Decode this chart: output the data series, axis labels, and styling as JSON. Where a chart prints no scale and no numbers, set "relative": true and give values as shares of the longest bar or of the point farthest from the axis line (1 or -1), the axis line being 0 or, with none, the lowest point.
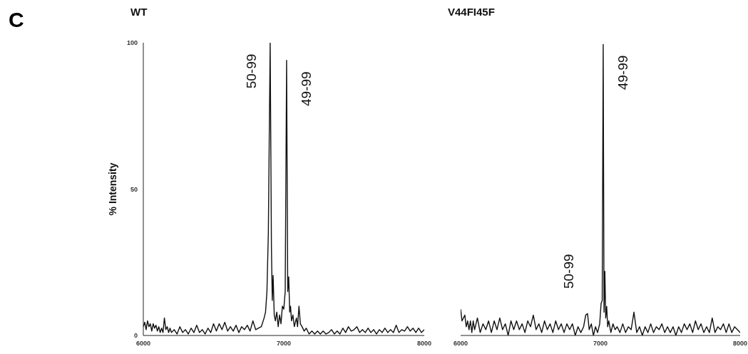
{
  "chart_data": [
    {
      "type": "line",
      "title": "WT",
      "ylabel": "% Intensity",
      "xlim": [
        6000,
        8000
      ],
      "xticks": [
        6000,
        7000,
        8000
      ],
      "ylim": [
        0,
        100
      ],
      "yticks": [
        0,
        50,
        100
      ],
      "marker": "none",
      "color": "#111111",
      "annotations": [
        "C",
        {
          "text": "50-99",
          "x": 6903,
          "y": 100
        },
        {
          "text": "49-99",
          "x": 7020,
          "y": 94
        }
      ],
      "x": [
        6000,
        6010,
        6020,
        6030,
        6040,
        6050,
        6060,
        6070,
        6080,
        6090,
        6100,
        6110,
        6120,
        6130,
        6140,
        6150,
        6160,
        6170,
        6180,
        6190,
        6200,
        6220,
        6240,
        6260,
        6280,
        6300,
        6320,
        6340,
        6360,
        6380,
        6400,
        6420,
        6440,
        6460,
        6480,
        6500,
        6520,
        6540,
        6560,
        6580,
        6600,
        6620,
        6640,
        6660,
        6680,
        6700,
        6720,
        6740,
        6760,
        6780,
        6800,
        6820,
        6840,
        6860,
        6870,
        6880,
        6890,
        6903,
        6912,
        6918,
        6924,
        6932,
        6940,
        6950,
        6960,
        6970,
        6980,
        6990,
        7000,
        7010,
        7020,
        7028,
        7035,
        7042,
        7048,
        7055,
        7065,
        7075,
        7090,
        7098,
        7108,
        7118,
        7130,
        7145,
        7160,
        7180,
        7200,
        7220,
        7240,
        7260,
        7280,
        7300,
        7320,
        7340,
        7360,
        7380,
        7400,
        7420,
        7440,
        7460,
        7480,
        7500,
        7520,
        7540,
        7560,
        7580,
        7600,
        7620,
        7640,
        7660,
        7680,
        7700,
        7720,
        7740,
        7760,
        7780,
        7800,
        7820,
        7840,
        7860,
        7880,
        7900,
        7920,
        7940,
        7960,
        7980,
        8000
      ],
      "values": [
        3,
        4.5,
        2,
        5,
        3,
        4,
        1.5,
        4,
        2.5,
        3.5,
        1.5,
        3,
        1,
        2.5,
        1,
        6,
        2,
        3,
        1,
        2.5,
        1,
        2,
        0.5,
        3,
        1,
        2,
        0.5,
        2.5,
        1,
        3.5,
        1,
        2,
        0.5,
        2.5,
        1,
        4,
        1.5,
        4,
        2,
        4.5,
        1.5,
        3,
        1.5,
        3.5,
        1,
        3,
        2,
        3.5,
        1.5,
        5,
        2,
        2.5,
        3,
        6,
        8,
        15,
        35,
        100,
        30,
        12,
        20.5,
        7,
        5,
        8,
        3,
        7,
        4,
        10,
        9,
        15,
        94,
        15,
        20,
        8,
        10,
        5,
        7,
        3,
        6,
        3,
        10,
        4,
        3,
        1.5,
        2.5,
        0.5,
        1.5,
        0.5,
        1.5,
        0.5,
        1.5,
        0.5,
        1,
        2,
        0.5,
        1.5,
        0.5,
        2.5,
        1,
        3,
        1.5,
        2,
        3,
        1,
        2,
        1,
        2.5,
        1,
        2,
        0.5,
        2,
        1,
        2.5,
        1,
        2,
        1,
        3.5,
        1,
        2,
        1.5,
        3,
        1.5,
        2.5,
        1,
        2.5,
        1,
        2
      ]
    },
    {
      "type": "line",
      "title": "V44FI45F",
      "relative": true,
      "xlim": [
        6000,
        8000
      ],
      "xticks": [
        6000,
        7000,
        8000
      ],
      "marker": "none",
      "color": "#111111",
      "annotations": [
        {
          "text": "50-99",
          "x": 6908,
          "y": 0.075
        },
        {
          "text": "49-99",
          "x": 7020,
          "y": 1
        }
      ],
      "x": [
        6000,
        6010,
        6020,
        6030,
        6040,
        6050,
        6060,
        6070,
        6080,
        6090,
        6100,
        6120,
        6140,
        6160,
        6180,
        6200,
        6220,
        6240,
        6260,
        6280,
        6300,
        6320,
        6340,
        6360,
        6380,
        6400,
        6420,
        6440,
        6460,
        6480,
        6500,
        6520,
        6540,
        6560,
        6580,
        6600,
        6620,
        6640,
        6660,
        6680,
        6700,
        6720,
        6740,
        6760,
        6780,
        6800,
        6820,
        6840,
        6860,
        6880,
        6895,
        6908,
        6920,
        6935,
        6950,
        6965,
        6980,
        6995,
        7005,
        7013,
        7020,
        7026,
        7032,
        7038,
        7045,
        7052,
        7060,
        7075,
        7090,
        7105,
        7120,
        7140,
        7160,
        7180,
        7200,
        7220,
        7240,
        7260,
        7280,
        7300,
        7320,
        7340,
        7360,
        7380,
        7400,
        7420,
        7440,
        7460,
        7480,
        7500,
        7520,
        7540,
        7560,
        7580,
        7600,
        7620,
        7640,
        7660,
        7680,
        7700,
        7720,
        7740,
        7760,
        7780,
        7800,
        7820,
        7840,
        7860,
        7880,
        7900,
        7920,
        7940,
        7960,
        7980,
        8000
      ],
      "values": [
        0.09,
        0.05,
        0.06,
        0.07,
        0.03,
        0.05,
        0.02,
        0.05,
        0.01,
        0.05,
        0.02,
        0.06,
        0.01,
        0.04,
        0.02,
        0.05,
        0.01,
        0.05,
        0.02,
        0.06,
        0.02,
        0.04,
        0,
        0.05,
        0.02,
        0.05,
        0.02,
        0.04,
        0.01,
        0.05,
        0.03,
        0.07,
        0.02,
        0.04,
        0.01,
        0.05,
        0.02,
        0.04,
        0.01,
        0.05,
        0.02,
        0.04,
        0.01,
        0.04,
        0.02,
        0.04,
        0,
        0.03,
        0.01,
        0.03,
        0.07,
        0.075,
        0.02,
        0.04,
        0,
        0.03,
        0.01,
        0.04,
        0.11,
        0.12,
        1,
        0.08,
        0.22,
        0.06,
        0.1,
        0.03,
        0.05,
        0.01,
        0.04,
        0.02,
        0.03,
        0.01,
        0.04,
        0.01,
        0.03,
        0.02,
        0.08,
        0.01,
        0.03,
        0,
        0.03,
        0.01,
        0.04,
        0.01,
        0.03,
        0.02,
        0.04,
        0.01,
        0.03,
        0.01,
        0.03,
        0,
        0.03,
        0.01,
        0.04,
        0.02,
        0.04,
        0.01,
        0.05,
        0.02,
        0.04,
        0.01,
        0.03,
        0.01,
        0.06,
        0.01,
        0.03,
        0.02,
        0.04,
        0.01,
        0.04,
        0.01,
        0.03,
        0.02,
        0.01
      ]
    }
  ]
}
